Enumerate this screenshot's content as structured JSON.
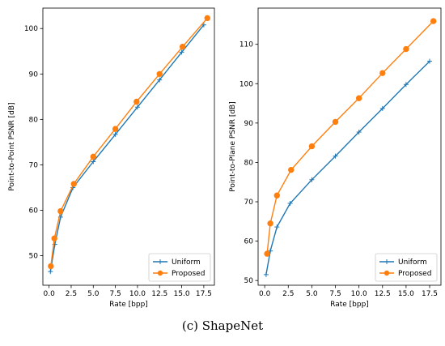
{
  "caption": "(c) ShapeNet",
  "colors": {
    "uniform": "#1f77b4",
    "proposed": "#ff7f0e"
  },
  "chart_data": [
    {
      "type": "line",
      "title": "",
      "xlabel": "Rate [bpp]",
      "ylabel": "Point-to-Point PSNR [dB]",
      "xlim": [
        -0.7,
        18.7
      ],
      "ylim": [
        43.5,
        104.5
      ],
      "xticks": [
        0.0,
        2.5,
        5.0,
        7.5,
        10.0,
        12.5,
        15.0,
        17.5
      ],
      "xtick_labels": [
        "0.0",
        "2.5",
        "5.0",
        "7.5",
        "10.0",
        "12.5",
        "15.0",
        "17.5"
      ],
      "yticks": [
        50,
        60,
        70,
        80,
        90,
        100
      ],
      "ytick_labels": [
        "50",
        "60",
        "70",
        "80",
        "90",
        "100"
      ],
      "grid": false,
      "legend": "bottom-right",
      "series": [
        {
          "name": "Uniform",
          "marker": "plus",
          "x": [
            0.15,
            0.65,
            1.3,
            2.7,
            5.0,
            7.5,
            10.0,
            12.5,
            15.0,
            17.5
          ],
          "y": [
            46.5,
            52.5,
            58.5,
            65.0,
            70.7,
            76.7,
            82.7,
            88.7,
            94.8,
            100.8
          ]
        },
        {
          "name": "Proposed",
          "marker": "circle",
          "x": [
            0.2,
            0.6,
            1.3,
            2.8,
            5.0,
            7.5,
            9.9,
            12.5,
            15.1,
            17.9
          ],
          "y": [
            47.7,
            53.8,
            59.8,
            65.8,
            71.8,
            77.9,
            83.9,
            90.0,
            96.0,
            102.3
          ]
        }
      ]
    },
    {
      "type": "line",
      "title": "",
      "xlabel": "Rate [bpp]",
      "ylabel": "Point-to-Plane PSNR [dB]",
      "xlim": [
        -0.7,
        18.7
      ],
      "ylim": [
        48.8,
        119.2
      ],
      "xticks": [
        0.0,
        2.5,
        5.0,
        7.5,
        10.0,
        12.5,
        15.0,
        17.5
      ],
      "xtick_labels": [
        "0.0",
        "2.5",
        "5.0",
        "7.5",
        "10.0",
        "12.5",
        "15.0",
        "17.5"
      ],
      "yticks": [
        50,
        60,
        70,
        80,
        90,
        100,
        110
      ],
      "ytick_labels": [
        "50",
        "60",
        "70",
        "80",
        "90",
        "100",
        "110"
      ],
      "grid": false,
      "legend": "bottom-right",
      "series": [
        {
          "name": "Uniform",
          "marker": "plus",
          "x": [
            0.15,
            0.6,
            1.3,
            2.7,
            5.0,
            7.5,
            10.0,
            12.5,
            15.0,
            17.5
          ],
          "y": [
            51.5,
            57.5,
            63.6,
            69.6,
            75.6,
            81.6,
            87.7,
            93.7,
            99.8,
            105.7
          ]
        },
        {
          "name": "Proposed",
          "marker": "circle",
          "x": [
            0.25,
            0.6,
            1.3,
            2.8,
            5.0,
            7.5,
            10.0,
            12.5,
            15.0,
            17.9
          ],
          "y": [
            56.8,
            64.5,
            71.6,
            78.1,
            84.1,
            90.3,
            96.3,
            102.7,
            108.8,
            115.9
          ]
        }
      ]
    }
  ]
}
